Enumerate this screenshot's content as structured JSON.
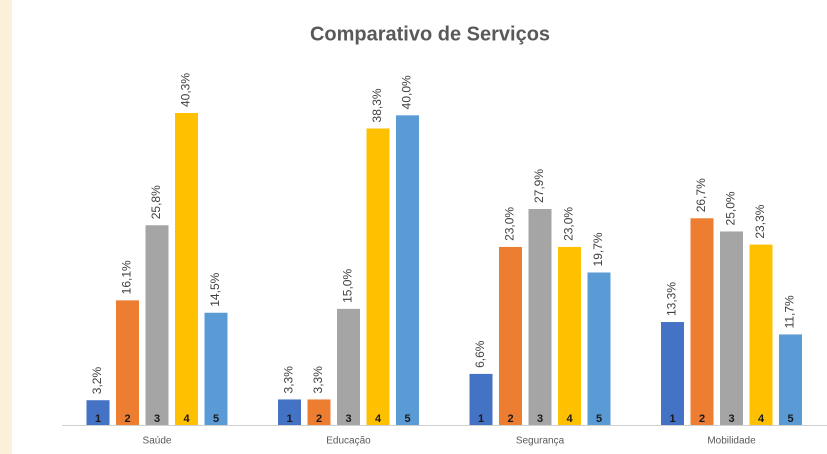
{
  "chart_data": {
    "type": "bar",
    "title": "Comparativo de Serviços",
    "categories": [
      "Saúde",
      "Educação",
      "Segurança",
      "Mobilidade"
    ],
    "series": [
      {
        "name": "1",
        "color": "#4472c4",
        "values": [
          3.2,
          3.3,
          6.6,
          13.3
        ],
        "value_labels": [
          "3,2%",
          "3,3%",
          "6,6%",
          "13,3%"
        ]
      },
      {
        "name": "2",
        "color": "#ed7d31",
        "values": [
          16.1,
          3.3,
          23.0,
          26.7
        ],
        "value_labels": [
          "16,1%",
          "3,3%",
          "23,0%",
          "26,7%"
        ]
      },
      {
        "name": "3",
        "color": "#a5a5a5",
        "values": [
          25.8,
          15.0,
          27.9,
          25.0
        ],
        "value_labels": [
          "25,8%",
          "15,0%",
          "27,9%",
          "25,0%"
        ]
      },
      {
        "name": "4",
        "color": "#ffc000",
        "values": [
          40.3,
          38.3,
          23.0,
          23.3
        ],
        "value_labels": [
          "40,3%",
          "38,3%",
          "23,0%",
          "23,3%"
        ]
      },
      {
        "name": "5",
        "color": "#5b9bd5",
        "values": [
          14.5,
          40.0,
          19.7,
          11.7
        ],
        "value_labels": [
          "14,5%",
          "40,0%",
          "19,7%",
          "11,7%"
        ]
      }
    ]
  }
}
